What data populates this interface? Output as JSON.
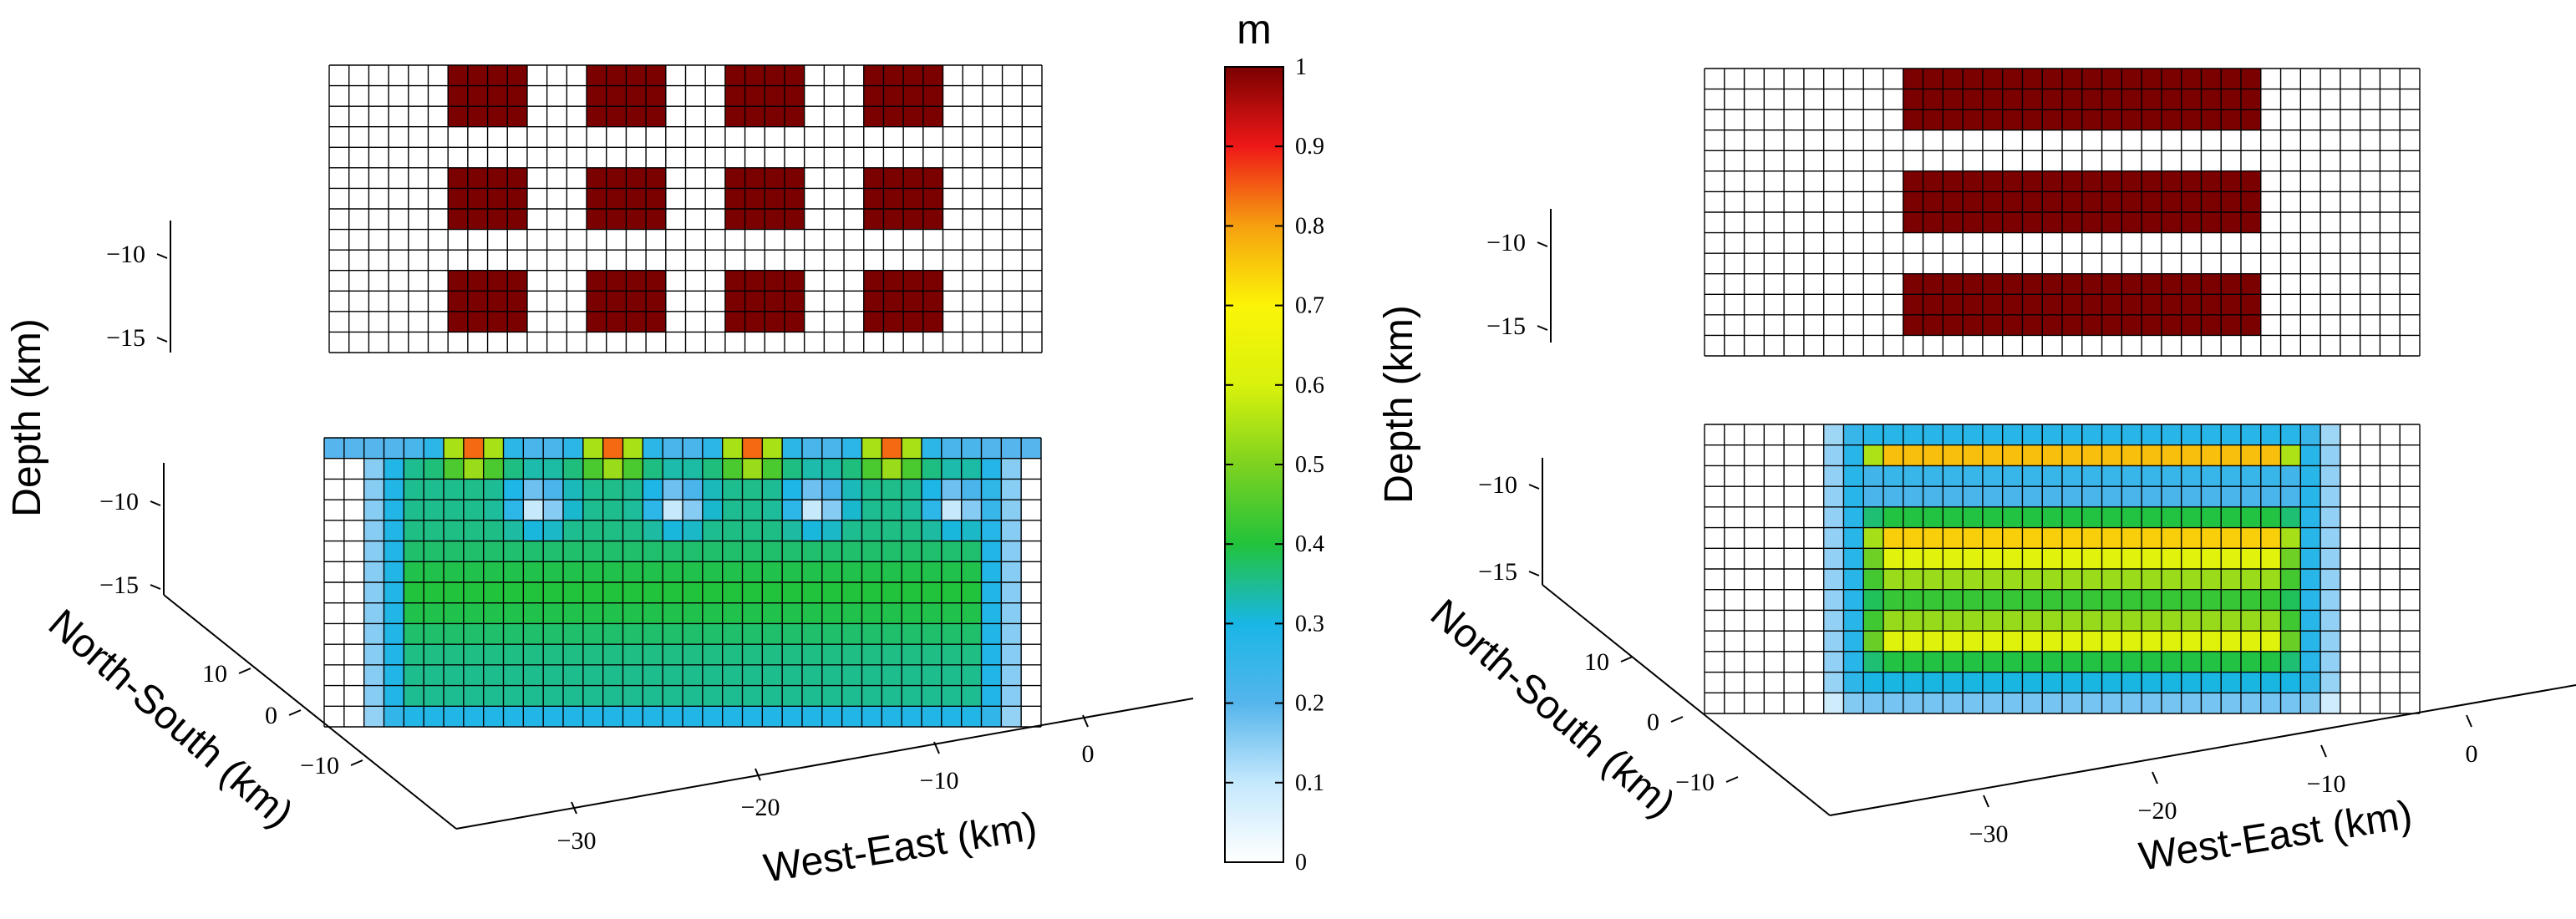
{
  "chart_data": [
    {
      "type": "heatmap",
      "panel": "left",
      "title": "",
      "grid": true,
      "mesh": {
        "columns": 36,
        "rows": 14
      },
      "top_slab": {
        "description_colors": "true model (value 1 blocks on value 0 background)",
        "patch_value": 1,
        "patches": [
          {
            "cols": [
              6,
              9
            ],
            "rows": [
              0,
              2
            ]
          },
          {
            "cols": [
              13,
              16
            ],
            "rows": [
              0,
              2
            ]
          },
          {
            "cols": [
              20,
              23
            ],
            "rows": [
              0,
              2
            ]
          },
          {
            "cols": [
              27,
              30
            ],
            "rows": [
              0,
              2
            ]
          },
          {
            "cols": [
              6,
              9
            ],
            "rows": [
              5,
              7
            ]
          },
          {
            "cols": [
              13,
              16
            ],
            "rows": [
              5,
              7
            ]
          },
          {
            "cols": [
              20,
              23
            ],
            "rows": [
              5,
              7
            ]
          },
          {
            "cols": [
              27,
              30
            ],
            "rows": [
              5,
              7
            ]
          },
          {
            "cols": [
              6,
              9
            ],
            "rows": [
              10,
              12
            ]
          },
          {
            "cols": [
              13,
              16
            ],
            "rows": [
              10,
              12
            ]
          },
          {
            "cols": [
              20,
              23
            ],
            "rows": [
              10,
              12
            ]
          },
          {
            "cols": [
              27,
              30
            ],
            "rows": [
              10,
              12
            ]
          }
        ]
      },
      "bottom_slab": {
        "style": "checker",
        "peak_x": [
          7.5,
          14.5,
          21.5,
          28.5
        ]
      },
      "z_ticks_top": [
        "−10",
        "−15"
      ],
      "z_ticks_bottom": [
        "−10",
        "−15"
      ],
      "y_ticks": [
        "10",
        "0",
        "−10"
      ],
      "x_ticks": [
        "−30",
        "−20",
        "−10",
        "0"
      ],
      "xlabel": "West-East (km)",
      "ylabel": "North-South (km)",
      "zlabel": "Depth (km)"
    },
    {
      "type": "heatmap",
      "panel": "right",
      "title": "",
      "grid": true,
      "mesh": {
        "columns": 36,
        "rows": 14
      },
      "top_slab": {
        "patch_value": 1,
        "patches": [
          {
            "cols": [
              10,
              27
            ],
            "rows": [
              0,
              2
            ]
          },
          {
            "cols": [
              10,
              27
            ],
            "rows": [
              5,
              7
            ]
          },
          {
            "cols": [
              10,
              27
            ],
            "rows": [
              10,
              12
            ]
          }
        ]
      },
      "bottom_slab": {
        "style": "layers"
      },
      "z_ticks_top": [
        "−10",
        "−15"
      ],
      "z_ticks_bottom": [
        "−10",
        "−15"
      ],
      "y_ticks": [
        "10",
        "0",
        "−10"
      ],
      "x_ticks": [
        "−30",
        "−20",
        "−10",
        "0"
      ],
      "xlabel": "West-East (km)",
      "ylabel": "North-South (km)",
      "zlabel": "Depth (km)"
    }
  ],
  "colorbar": {
    "unit": "m",
    "min": 0,
    "max": 1,
    "ticks": [
      "0",
      "0.1",
      "0.2",
      "0.3",
      "0.4",
      "0.5",
      "0.6",
      "0.7",
      "0.8",
      "0.9",
      "1"
    ],
    "colormap": [
      "#ffffff",
      "#c4e8fc",
      "#55b5ec",
      "#19b6e6",
      "#22c33c",
      "#7ed220",
      "#d9f20c",
      "#fcf407",
      "#f6a010",
      "#ef1818",
      "#7b0000"
    ]
  }
}
